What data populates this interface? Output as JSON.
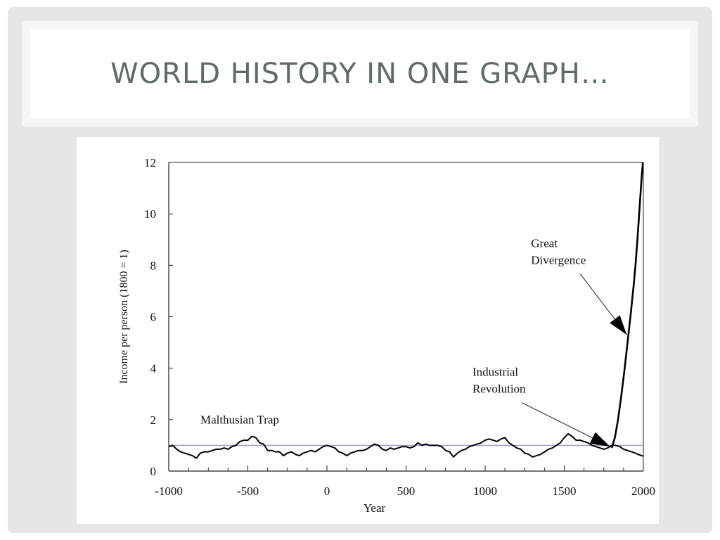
{
  "slide": {
    "title": "World History in One Graph…"
  },
  "chart_data": {
    "type": "line",
    "title": "",
    "xlabel": "Year",
    "ylabel": "Income per person (1800 = 1)",
    "xlim": [
      -1000,
      2000
    ],
    "ylim": [
      0,
      12
    ],
    "x_ticks": [
      -1000,
      -500,
      0,
      500,
      1000,
      1500,
      2000
    ],
    "y_ticks": [
      0,
      2,
      4,
      6,
      8,
      10,
      12
    ],
    "reference_line": {
      "y": 1,
      "color": "#9b9bd6"
    },
    "series": [
      {
        "name": "",
        "color": "#000000",
        "x": [
          -1000,
          -975,
          -950,
          -925,
          -900,
          -875,
          -850,
          -825,
          -800,
          -775,
          -750,
          -725,
          -700,
          -675,
          -650,
          -625,
          -600,
          -575,
          -550,
          -525,
          -500,
          -475,
          -450,
          -425,
          -400,
          -375,
          -350,
          -325,
          -300,
          -275,
          -250,
          -225,
          -200,
          -175,
          -150,
          -125,
          -100,
          -75,
          -50,
          -25,
          0,
          25,
          50,
          75,
          100,
          125,
          150,
          175,
          200,
          225,
          250,
          275,
          300,
          325,
          350,
          375,
          400,
          425,
          450,
          475,
          500,
          525,
          550,
          575,
          600,
          625,
          650,
          675,
          700,
          725,
          750,
          775,
          800,
          825,
          850,
          875,
          900,
          925,
          950,
          975,
          1000,
          1025,
          1050,
          1075,
          1100,
          1125,
          1150,
          1175,
          1200,
          1225,
          1250,
          1275,
          1300,
          1325,
          1350,
          1375,
          1400,
          1425,
          1450,
          1475,
          1500,
          1525,
          1550,
          1575,
          1600,
          1625,
          1650,
          1675,
          1700,
          1725,
          1750,
          1775,
          1800
        ],
        "y": [
          0.95,
          1.0,
          0.85,
          0.75,
          0.7,
          0.65,
          0.6,
          0.5,
          0.7,
          0.75,
          0.75,
          0.8,
          0.85,
          0.85,
          0.9,
          0.85,
          0.95,
          1.0,
          1.15,
          1.2,
          1.2,
          1.35,
          1.3,
          1.1,
          1.05,
          0.8,
          0.8,
          0.75,
          0.75,
          0.6,
          0.7,
          0.75,
          0.65,
          0.6,
          0.7,
          0.75,
          0.8,
          0.75,
          0.85,
          0.95,
          1.0,
          0.95,
          0.9,
          0.75,
          0.7,
          0.6,
          0.7,
          0.75,
          0.8,
          0.8,
          0.85,
          0.95,
          1.05,
          1.0,
          0.85,
          0.8,
          0.9,
          0.85,
          0.9,
          0.95,
          0.95,
          0.9,
          0.95,
          1.1,
          1.0,
          1.05,
          1.0,
          1.0,
          1.0,
          0.95,
          0.8,
          0.75,
          0.55,
          0.7,
          0.8,
          0.85,
          0.95,
          1.0,
          1.05,
          1.1,
          1.2,
          1.25,
          1.2,
          1.15,
          1.25,
          1.3,
          1.1,
          1.0,
          0.9,
          0.85,
          0.7,
          0.65,
          0.55,
          0.6,
          0.65,
          0.75,
          0.85,
          0.9,
          1.0,
          1.1,
          1.3,
          1.45,
          1.35,
          1.2,
          1.2,
          1.15,
          1.1,
          1.0,
          0.95,
          0.9,
          0.85,
          0.9,
          1.0
        ]
      },
      {
        "name": "",
        "color": "#000000",
        "x": [
          1800,
          1825,
          1850,
          1875,
          1900,
          1925,
          1950,
          1965,
          1980,
          1990,
          1997
        ],
        "y": [
          1.0,
          1.0,
          0.95,
          0.85,
          0.8,
          0.75,
          0.7,
          0.65,
          0.62,
          0.6,
          0.58
        ]
      },
      {
        "name": "",
        "color": "#000000",
        "x": [
          1800,
          1820,
          1840,
          1860,
          1880,
          1900,
          1920,
          1940,
          1950,
          1960,
          1970,
          1980,
          1990,
          1997
        ],
        "y": [
          0.9,
          1.3,
          2.0,
          2.9,
          3.9,
          5.0,
          6.1,
          7.3,
          8.0,
          8.8,
          9.7,
          10.6,
          11.5,
          12.0
        ]
      }
    ],
    "annotations": [
      {
        "text_lines": [
          "Malthusian Trap"
        ],
        "x": -800,
        "y": 1.85
      },
      {
        "text_lines": [
          "Industrial",
          "Revolution"
        ],
        "x": 920,
        "y": 3.7,
        "arrow_to": [
          1790,
          0.95
        ]
      },
      {
        "text_lines": [
          "Great",
          "Divergence"
        ],
        "x": 1290,
        "y": 8.7,
        "arrow_to": [
          1895,
          5.3
        ]
      }
    ]
  }
}
